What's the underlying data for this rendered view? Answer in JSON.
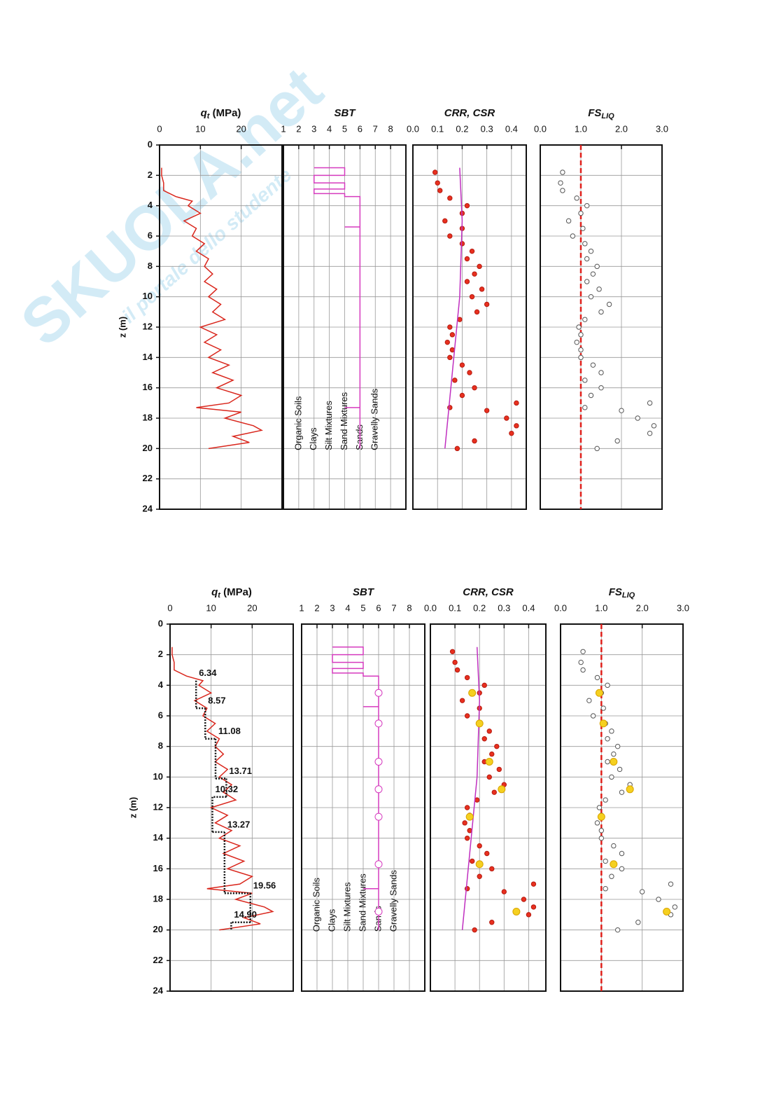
{
  "watermark": {
    "brand": "SKUOLA.net",
    "tagline": "il portale dello studente"
  },
  "chart_data": [
    {
      "type": "profile",
      "title_main": "q",
      "title_sub": "t",
      "title_rest": " (MPa)",
      "ylabel": "z (m)",
      "xlim": [
        0,
        30
      ],
      "xticks": [
        0,
        10,
        20
      ],
      "ylim": [
        0,
        24
      ],
      "yticks": [
        0,
        2,
        4,
        6,
        8,
        10,
        12,
        14,
        16,
        18,
        20,
        22,
        24
      ],
      "grid": true,
      "series": [
        {
          "style": "line",
          "color": "#d9261c",
          "depth": [
            1.5,
            2,
            2.5,
            3,
            3.4,
            3.7,
            4,
            4.5,
            5,
            5.5,
            6,
            6.5,
            7,
            7.5,
            8,
            8.5,
            9,
            9.5,
            10,
            10.5,
            11,
            11.5,
            12,
            12.5,
            13,
            13.5,
            14,
            14.5,
            15,
            15.5,
            16,
            16.5,
            17,
            17.3,
            17.6,
            18,
            18.5,
            18.8,
            19.2,
            19.6,
            20
          ],
          "values": [
            0.5,
            0.5,
            1,
            1,
            4,
            8,
            7,
            10,
            6,
            9,
            8,
            11,
            9,
            12,
            11,
            13,
            11,
            14,
            12,
            15,
            13,
            16,
            10,
            14,
            11,
            15,
            12,
            17,
            13,
            18,
            14,
            20,
            17,
            9,
            20,
            16,
            23,
            25,
            18,
            22,
            12
          ]
        }
      ]
    },
    {
      "type": "profile",
      "title_main": "SBT",
      "xlim": [
        1,
        9
      ],
      "xticks": [
        1,
        2,
        3,
        4,
        5,
        6,
        7,
        8
      ],
      "ylim": [
        0,
        24
      ],
      "yticks": [
        0,
        2,
        4,
        6,
        8,
        10,
        12,
        14,
        16,
        18,
        20,
        22,
        24
      ],
      "grid": true,
      "zone_labels": [
        "Organic Soils",
        "Clays",
        "Silt Mixtures",
        "Sand Mixtures",
        "Sands",
        "Gravelly Sands"
      ],
      "series": [
        {
          "style": "line",
          "color": "#d63bbf",
          "depth": [
            1.5,
            1.5,
            2.0,
            2.0,
            2.5,
            2.5,
            2.9,
            2.9,
            3.2,
            3.2,
            3.4,
            3.4,
            5.4,
            5.4,
            5.4,
            17.3,
            17.3,
            17.3,
            20
          ],
          "values": [
            3,
            5,
            5,
            3,
            3,
            5,
            5,
            3,
            3,
            5,
            5,
            6,
            6,
            5,
            6,
            6,
            5,
            6,
            6
          ]
        }
      ]
    },
    {
      "type": "profile",
      "title_main": "CRR, CSR",
      "xlim": [
        0,
        0.46
      ],
      "xticks": [
        {
          "value": 0,
          "label": "0.0"
        },
        0.1,
        0.2,
        0.3,
        0.4
      ],
      "ylim": [
        0,
        24
      ],
      "yticks": [
        0,
        2,
        4,
        6,
        8,
        10,
        12,
        14,
        16,
        18,
        20,
        22,
        24
      ],
      "grid": true,
      "series": [
        {
          "style": "points",
          "color": "#b51a10",
          "fill": "#e8301f",
          "depth": [
            1.8,
            2.5,
            3,
            3.5,
            4,
            4.5,
            5,
            5.5,
            6,
            6.5,
            7,
            7.5,
            8,
            8.5,
            9,
            9.5,
            10,
            10.5,
            11,
            11.5,
            12,
            12.5,
            13,
            13.5,
            14,
            14.5,
            15,
            15.5,
            16,
            16.5,
            17,
            17.3,
            17.5,
            18,
            18.5,
            19,
            19.5,
            20
          ],
          "values": [
            0.09,
            0.1,
            0.11,
            0.15,
            0.22,
            0.2,
            0.13,
            0.2,
            0.15,
            0.2,
            0.24,
            0.22,
            0.27,
            0.25,
            0.22,
            0.28,
            0.24,
            0.3,
            0.26,
            0.19,
            0.15,
            0.16,
            0.14,
            0.16,
            0.15,
            0.2,
            0.23,
            0.17,
            0.25,
            0.2,
            0.42,
            0.15,
            0.3,
            0.38,
            0.42,
            0.4,
            0.25,
            0.18
          ]
        },
        {
          "style": "line",
          "color": "#c02fc0",
          "depth": [
            1.5,
            5,
            10,
            15,
            20
          ],
          "values": [
            0.19,
            0.2,
            0.19,
            0.16,
            0.13
          ]
        }
      ]
    },
    {
      "type": "profile",
      "title_main": "FS",
      "title_sub": "LIQ",
      "xlim": [
        0,
        3
      ],
      "xticks": [
        {
          "value": 0,
          "label": "0.0"
        },
        {
          "value": 1,
          "label": "1.0"
        },
        {
          "value": 2,
          "label": "2.0"
        },
        {
          "value": 3,
          "label": "3.0"
        }
      ],
      "ylim": [
        0,
        24
      ],
      "yticks": [
        0,
        2,
        4,
        6,
        8,
        10,
        12,
        14,
        16,
        18,
        20,
        22,
        24
      ],
      "grid": true,
      "reference_line": 1,
      "reference_color": "#e0201b",
      "series": [
        {
          "style": "points",
          "color": "#555555",
          "fill": "#ffffff",
          "depth": [
            1.8,
            2.5,
            3,
            3.5,
            4,
            4.5,
            5,
            5.5,
            6,
            6.5,
            7,
            7.5,
            8,
            8.5,
            9,
            9.5,
            10,
            10.5,
            11,
            11.5,
            12,
            12.5,
            13,
            13.5,
            14,
            14.5,
            15,
            15.5,
            16,
            16.5,
            17,
            17.3,
            17.5,
            18,
            18.5,
            19,
            19.5,
            20
          ],
          "values": [
            0.55,
            0.5,
            0.55,
            0.9,
            1.15,
            1.0,
            0.7,
            1.05,
            0.8,
            1.1,
            1.25,
            1.15,
            1.4,
            1.3,
            1.15,
            1.45,
            1.25,
            1.7,
            1.5,
            1.1,
            0.95,
            1.0,
            0.9,
            1.0,
            1.0,
            1.3,
            1.5,
            1.1,
            1.5,
            1.25,
            2.7,
            1.1,
            2.0,
            2.4,
            2.8,
            2.7,
            1.9,
            1.4
          ]
        }
      ]
    },
    {
      "type": "profile",
      "title_main": "q",
      "title_sub": "t",
      "title_rest": " (MPa)",
      "ylabel": "z (m)",
      "xlim": [
        0,
        30
      ],
      "xticks": [
        0,
        10,
        20
      ],
      "ylim": [
        0,
        24
      ],
      "yticks": [
        0,
        2,
        4,
        6,
        8,
        10,
        12,
        14,
        16,
        18,
        20,
        22,
        24
      ],
      "grid": true,
      "series": [
        {
          "style": "line",
          "color": "#d9261c",
          "depth": [
            1.5,
            2,
            2.5,
            3,
            3.4,
            3.7,
            4,
            4.5,
            5,
            5.5,
            6,
            6.5,
            7,
            7.5,
            8,
            8.5,
            9,
            9.5,
            10,
            10.5,
            11,
            11.5,
            12,
            12.5,
            13,
            13.5,
            14,
            14.5,
            15,
            15.5,
            16,
            16.5,
            17,
            17.3,
            17.6,
            18,
            18.5,
            18.8,
            19.2,
            19.6,
            20
          ],
          "values": [
            0.5,
            0.5,
            1,
            1,
            4,
            8,
            7,
            10,
            6,
            9,
            8,
            11,
            9,
            12,
            11,
            13,
            11,
            14,
            12,
            15,
            13,
            16,
            10,
            14,
            11,
            15,
            12,
            17,
            13,
            18,
            14,
            20,
            17,
            9,
            20,
            16,
            23,
            25,
            18,
            22,
            12
          ]
        },
        {
          "style": "layers",
          "color": "#111111",
          "depth_top": [
            3.7,
            5.5,
            7.5,
            10.1,
            11.3,
            13.6,
            17.6,
            19.5
          ],
          "depth_bottom": [
            5.5,
            7.5,
            10.1,
            11.3,
            13.6,
            17.6,
            19.5,
            20
          ],
          "values": [
            6.34,
            8.57,
            11.08,
            13.71,
            10.32,
            13.27,
            19.56,
            14.9
          ],
          "value_labels": [
            "6.34",
            "8.57",
            "11.08",
            "13.71",
            "10.32",
            "13.27",
            "19.56",
            "14.90"
          ]
        }
      ]
    },
    {
      "type": "profile",
      "title_main": "SBT",
      "xlim": [
        1,
        9
      ],
      "xticks": [
        1,
        2,
        3,
        4,
        5,
        6,
        7,
        8
      ],
      "ylim": [
        0,
        24
      ],
      "yticks": [
        0,
        2,
        4,
        6,
        8,
        10,
        12,
        14,
        16,
        18,
        20,
        22,
        24
      ],
      "grid": true,
      "zone_labels": [
        "Organic Soils",
        "Clays",
        "Silt Mixtures",
        "Sand Mixtures",
        "Sands",
        "Gravelly Sands"
      ],
      "series": [
        {
          "style": "line",
          "color": "#d63bbf",
          "depth": [
            1.5,
            1.5,
            2.0,
            2.0,
            2.5,
            2.5,
            2.9,
            2.9,
            3.2,
            3.2,
            3.4,
            3.4,
            5.4,
            5.4,
            5.4,
            17.3,
            17.3,
            17.3,
            20
          ],
          "values": [
            3,
            5,
            5,
            3,
            3,
            5,
            5,
            3,
            3,
            5,
            5,
            6,
            6,
            5,
            6,
            6,
            5,
            6,
            6
          ]
        },
        {
          "style": "points",
          "color": "#d63bbf",
          "fill": "#ffffff",
          "size": 5,
          "depth": [
            4.5,
            6.5,
            9,
            10.8,
            12.6,
            15.7,
            18.8
          ],
          "values": [
            6,
            6,
            6,
            6,
            6,
            6,
            6
          ]
        }
      ]
    },
    {
      "type": "profile",
      "title_main": "CRR, CSR",
      "xlim": [
        0,
        0.47
      ],
      "xticks": [
        {
          "value": 0,
          "label": "0.0"
        },
        0.1,
        0.2,
        0.3,
        0.4
      ],
      "ylim": [
        0,
        24
      ],
      "yticks": [
        0,
        2,
        4,
        6,
        8,
        10,
        12,
        14,
        16,
        18,
        20,
        22,
        24
      ],
      "grid": true,
      "series": [
        {
          "style": "points",
          "color": "#b51a10",
          "fill": "#e8301f",
          "depth": [
            1.8,
            2.5,
            3,
            3.5,
            4,
            4.5,
            5,
            5.5,
            6,
            6.5,
            7,
            7.5,
            8,
            8.5,
            9,
            9.5,
            10,
            10.5,
            11,
            11.5,
            12,
            12.5,
            13,
            13.5,
            14,
            14.5,
            15,
            15.5,
            16,
            16.5,
            17,
            17.3,
            17.5,
            18,
            18.5,
            19,
            19.5,
            20
          ],
          "values": [
            0.09,
            0.1,
            0.11,
            0.15,
            0.22,
            0.2,
            0.13,
            0.2,
            0.15,
            0.2,
            0.24,
            0.22,
            0.27,
            0.25,
            0.22,
            0.28,
            0.24,
            0.3,
            0.26,
            0.19,
            0.15,
            0.16,
            0.14,
            0.16,
            0.15,
            0.2,
            0.23,
            0.17,
            0.25,
            0.2,
            0.42,
            0.15,
            0.3,
            0.38,
            0.42,
            0.4,
            0.25,
            0.18
          ]
        },
        {
          "style": "line",
          "color": "#c02fc0",
          "depth": [
            1.5,
            5,
            10,
            15,
            20
          ],
          "values": [
            0.19,
            0.2,
            0.19,
            0.16,
            0.13
          ]
        },
        {
          "style": "points",
          "color": "#d9a400",
          "fill": "#f5d020",
          "size": 5,
          "depth": [
            4.5,
            6.5,
            9,
            10.8,
            12.6,
            15.7,
            18.8
          ],
          "values": [
            0.17,
            0.2,
            0.24,
            0.29,
            0.16,
            0.2,
            0.35
          ]
        }
      ]
    },
    {
      "type": "profile",
      "title_main": "FS",
      "title_sub": "LIQ",
      "xlim": [
        0,
        3
      ],
      "xticks": [
        {
          "value": 0,
          "label": "0.0"
        },
        {
          "value": 1,
          "label": "1.0"
        },
        {
          "value": 2,
          "label": "2.0"
        },
        {
          "value": 3,
          "label": "3.0"
        }
      ],
      "ylim": [
        0,
        24
      ],
      "yticks": [
        0,
        2,
        4,
        6,
        8,
        10,
        12,
        14,
        16,
        18,
        20,
        22,
        24
      ],
      "grid": true,
      "reference_line": 1,
      "reference_color": "#e0201b",
      "series": [
        {
          "style": "points",
          "color": "#555555",
          "fill": "#ffffff",
          "depth": [
            1.8,
            2.5,
            3,
            3.5,
            4,
            4.5,
            5,
            5.5,
            6,
            6.5,
            7,
            7.5,
            8,
            8.5,
            9,
            9.5,
            10,
            10.5,
            11,
            11.5,
            12,
            12.5,
            13,
            13.5,
            14,
            14.5,
            15,
            15.5,
            16,
            16.5,
            17,
            17.3,
            17.5,
            18,
            18.5,
            19,
            19.5,
            20
          ],
          "values": [
            0.55,
            0.5,
            0.55,
            0.9,
            1.15,
            1.0,
            0.7,
            1.05,
            0.8,
            1.1,
            1.25,
            1.15,
            1.4,
            1.3,
            1.15,
            1.45,
            1.25,
            1.7,
            1.5,
            1.1,
            0.95,
            1.0,
            0.9,
            1.0,
            1.0,
            1.3,
            1.5,
            1.1,
            1.5,
            1.25,
            2.7,
            1.1,
            2.0,
            2.4,
            2.8,
            2.7,
            1.9,
            1.4
          ]
        },
        {
          "style": "points",
          "color": "#d9a400",
          "fill": "#f5d020",
          "size": 5,
          "depth": [
            4.5,
            6.5,
            9,
            10.8,
            12.6,
            15.7,
            18.8
          ],
          "values": [
            0.95,
            1.05,
            1.3,
            1.7,
            1.0,
            1.3,
            2.6
          ]
        }
      ]
    }
  ]
}
